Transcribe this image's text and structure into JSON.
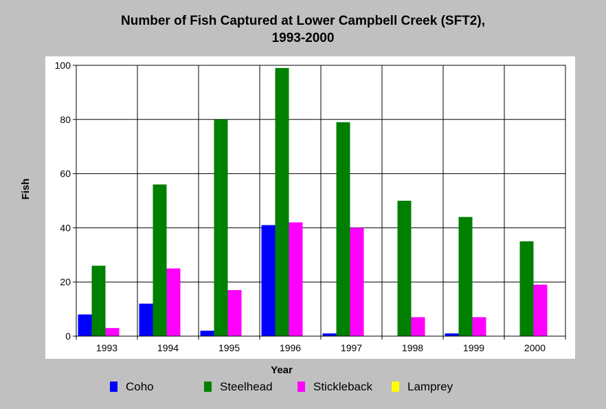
{
  "chart_data": {
    "type": "bar",
    "title_line1": "Number of Fish Captured at Lower Campbell Creek (SFT2),",
    "title_line2": "1993-2000",
    "xlabel": "Year",
    "ylabel": "Fish",
    "ylim": [
      0,
      100
    ],
    "yticks": [
      "0",
      "20",
      "40",
      "60",
      "80",
      "100"
    ],
    "categories": [
      "1993",
      "1994",
      "1995",
      "1996",
      "1997",
      "1998",
      "1999",
      "2000"
    ],
    "series": [
      {
        "name": "Coho",
        "color": "#0000ff",
        "values": [
          8,
          12,
          2,
          41,
          1,
          0,
          1,
          0
        ]
      },
      {
        "name": "Steelhead",
        "color": "#008000",
        "values": [
          26,
          56,
          80,
          99,
          79,
          50,
          44,
          35
        ]
      },
      {
        "name": "Stickleback",
        "color": "#ff00ff",
        "values": [
          3,
          25,
          17,
          42,
          40,
          7,
          7,
          19
        ]
      },
      {
        "name": "Lamprey",
        "color": "#ffff00",
        "values": [
          0,
          0,
          0,
          0,
          0,
          0,
          0,
          0
        ]
      }
    ],
    "grid": true,
    "legend_position": "bottom"
  }
}
